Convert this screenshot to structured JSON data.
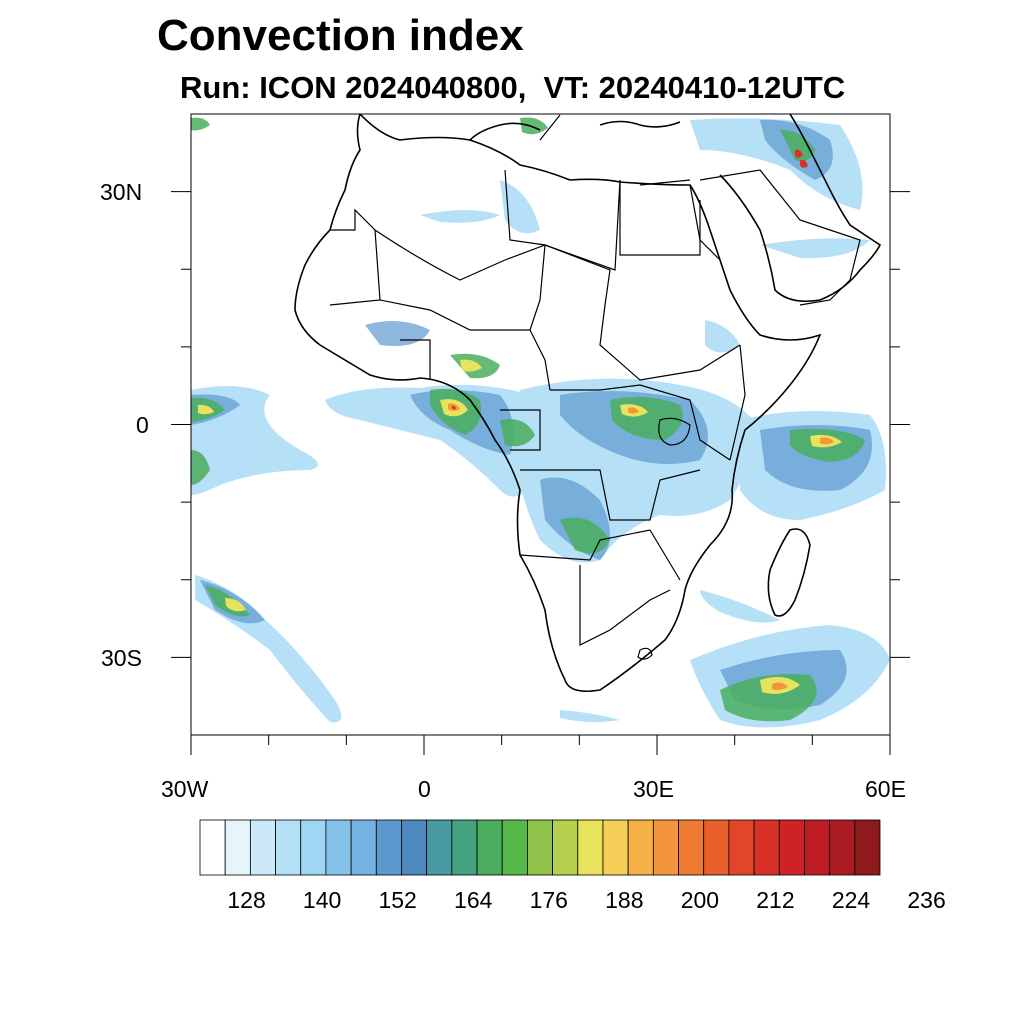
{
  "title": "Convection index",
  "subtitle": "Run: ICON 2024040800,  VT: 20240410-12UTC",
  "axes": {
    "lat_labels": [
      "30N",
      "0",
      "30S"
    ],
    "lon_labels": [
      "30W",
      "0",
      "30E",
      "60E"
    ],
    "lat_range": [
      -40,
      40
    ],
    "lon_range": [
      -30,
      60
    ]
  },
  "colorbar": {
    "labels": [
      "128",
      "140",
      "152",
      "164",
      "176",
      "188",
      "200",
      "212",
      "224",
      "236"
    ],
    "colors": [
      "#ffffff",
      "#e6f4fc",
      "#cce9f8",
      "#b4e0f6",
      "#9ed6f4",
      "#86c3ea",
      "#74b2e2",
      "#5d99cf",
      "#4f88bf",
      "#479aa0",
      "#44a37e",
      "#4aae5e",
      "#56b84a",
      "#8fc24a",
      "#b6d14e",
      "#e7e35c",
      "#f6cf58",
      "#f5b046",
      "#f3953c",
      "#ef7a33",
      "#ea5e2b",
      "#e34528",
      "#d93127",
      "#cf2227",
      "#bf1d25",
      "#ab1b22",
      "#8e1a1c"
    ]
  }
}
